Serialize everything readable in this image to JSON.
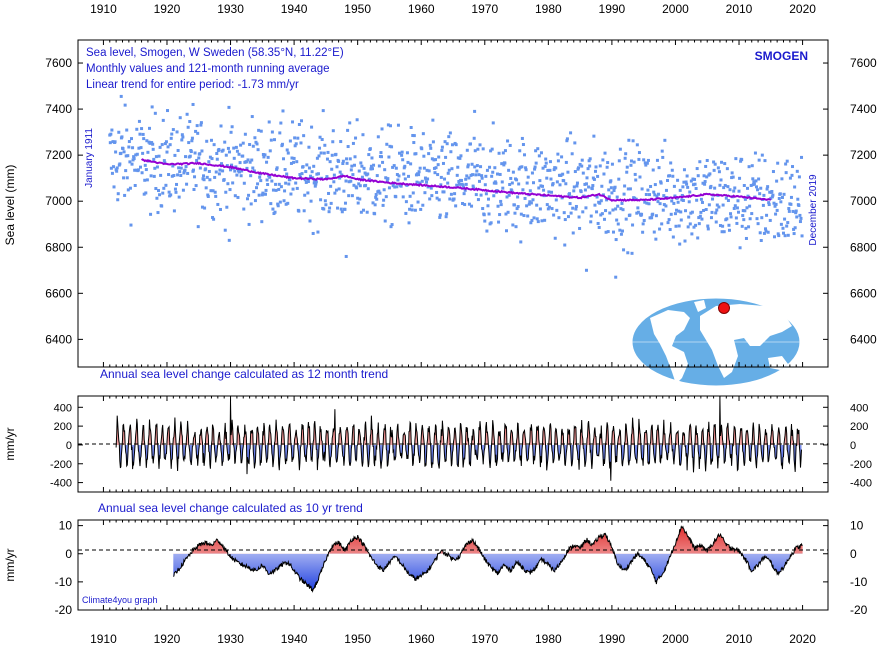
{
  "chart_data": [
    {
      "type": "scatter",
      "id": "main",
      "station": "SMOGEN",
      "title_lines": [
        "Sea level, Smogen, W Sweden (58.35°N, 11.22°E)",
        "Monthly values and 121-month running average",
        "Linear trend for entire period: -1.73 mm/yr"
      ],
      "ylabel": "Sea level (mm)",
      "start_label": "January 1911",
      "end_label": "December 2019",
      "xlim": [
        1906,
        2024
      ],
      "ylim": [
        6280,
        7700
      ],
      "xticks": [
        1910,
        1920,
        1930,
        1940,
        1950,
        1960,
        1970,
        1980,
        1990,
        2000,
        2010,
        2020
      ],
      "yticks": [
        6400,
        6600,
        6800,
        7000,
        7200,
        7400,
        7600
      ],
      "colors": {
        "monthly": "#6495ed",
        "running_average": "#9400d3",
        "title": "#1a1acd",
        "map_ocean": "#66aee6",
        "map_land": "#ffffff",
        "marker": "#ee1111"
      },
      "series": [
        {
          "name": "Monthly values",
          "style": "points",
          "trend_start": 7180,
          "trend_slope_mm_per_yr": -1.73,
          "x_start": 1911.0,
          "x_end": 2019.92,
          "notable_points": [
            [
              1912.8,
              7455
            ],
            [
              1924.1,
              7420
            ],
            [
              1968.4,
              7390
            ],
            [
              1948.2,
              6760
            ],
            [
              1990.6,
              6670
            ],
            [
              1986.0,
              6700
            ],
            [
              1929.8,
              6830
            ]
          ]
        },
        {
          "name": "121-month running average",
          "style": "line",
          "points": [
            [
              1916,
              7180
            ],
            [
              1920,
              7160
            ],
            [
              1925,
              7165
            ],
            [
              1930,
              7148
            ],
            [
              1935,
              7120
            ],
            [
              1940,
              7100
            ],
            [
              1945,
              7095
            ],
            [
              1948,
              7110
            ],
            [
              1950,
              7095
            ],
            [
              1955,
              7080
            ],
            [
              1960,
              7070
            ],
            [
              1965,
              7060
            ],
            [
              1970,
              7048
            ],
            [
              1975,
              7035
            ],
            [
              1980,
              7025
            ],
            [
              1985,
              7015
            ],
            [
              1988,
              7030
            ],
            [
              1990,
              7005
            ],
            [
              1995,
              7005
            ],
            [
              2000,
              7015
            ],
            [
              2005,
              7030
            ],
            [
              2010,
              7020
            ],
            [
              2015,
              7005
            ]
          ]
        }
      ]
    },
    {
      "type": "area",
      "id": "annual",
      "title": "Annual sea level change calculated as 12 month trend",
      "ylabel": "mm/yr",
      "xlim": [
        1906,
        2024
      ],
      "ylim": [
        -500,
        520
      ],
      "yticks": [
        -400,
        -200,
        0,
        200,
        400
      ],
      "colors": {
        "positive": "#e03030",
        "negative": "#1f3fdf",
        "line": "#000000"
      },
      "notable_peaks": [
        [
          1930.0,
          480
        ],
        [
          2007.0,
          520
        ],
        [
          1932.6,
          -310
        ],
        [
          1989.8,
          -380
        ],
        [
          1946.4,
          380
        ]
      ],
      "typical_amplitude_mm_per_yr": 220
    },
    {
      "type": "area",
      "id": "decadal",
      "title": "Annual sea level change calculated as 10 yr trend",
      "ylabel": "mm/yr",
      "note": "Climate4you graph",
      "xlim": [
        1906,
        2024
      ],
      "ylim": [
        -20,
        12
      ],
      "yticks": [
        -20,
        -10,
        0,
        10
      ],
      "colors": {
        "positive": "#e03030",
        "negative": "#1f3fdf",
        "line": "#000000"
      },
      "points": [
        [
          1921,
          -8
        ],
        [
          1922,
          -5
        ],
        [
          1923,
          -2
        ],
        [
          1924,
          1
        ],
        [
          1925,
          3
        ],
        [
          1926,
          4
        ],
        [
          1927,
          3
        ],
        [
          1928,
          5
        ],
        [
          1929,
          2
        ],
        [
          1930,
          -1
        ],
        [
          1931,
          -3
        ],
        [
          1932,
          -4
        ],
        [
          1933,
          -5
        ],
        [
          1934,
          -6
        ],
        [
          1935,
          -4
        ],
        [
          1936,
          -7
        ],
        [
          1937,
          -6
        ],
        [
          1938,
          -4
        ],
        [
          1939,
          -3
        ],
        [
          1940,
          -6
        ],
        [
          1941,
          -9
        ],
        [
          1942,
          -11
        ],
        [
          1943,
          -13
        ],
        [
          1944,
          -8
        ],
        [
          1945,
          -2
        ],
        [
          1946,
          3
        ],
        [
          1947,
          4
        ],
        [
          1948,
          1
        ],
        [
          1949,
          5
        ],
        [
          1950,
          6
        ],
        [
          1951,
          3
        ],
        [
          1952,
          -1
        ],
        [
          1953,
          -4
        ],
        [
          1954,
          -6
        ],
        [
          1955,
          -3
        ],
        [
          1956,
          -1
        ],
        [
          1957,
          -4
        ],
        [
          1958,
          -7
        ],
        [
          1959,
          -9
        ],
        [
          1960,
          -8
        ],
        [
          1961,
          -6
        ],
        [
          1962,
          -3
        ],
        [
          1963,
          1
        ],
        [
          1964,
          0
        ],
        [
          1965,
          -2
        ],
        [
          1966,
          -1
        ],
        [
          1967,
          3
        ],
        [
          1968,
          5
        ],
        [
          1969,
          2
        ],
        [
          1970,
          -2
        ],
        [
          1971,
          -5
        ],
        [
          1972,
          -7
        ],
        [
          1973,
          -4
        ],
        [
          1974,
          -6
        ],
        [
          1975,
          -3
        ],
        [
          1976,
          -5
        ],
        [
          1977,
          -7
        ],
        [
          1978,
          -5
        ],
        [
          1979,
          -2
        ],
        [
          1980,
          -4
        ],
        [
          1981,
          -6
        ],
        [
          1982,
          -3
        ],
        [
          1983,
          1
        ],
        [
          1984,
          3
        ],
        [
          1985,
          2
        ],
        [
          1986,
          5
        ],
        [
          1987,
          3
        ],
        [
          1988,
          6
        ],
        [
          1989,
          7
        ],
        [
          1990,
          2
        ],
        [
          1991,
          -4
        ],
        [
          1992,
          -6
        ],
        [
          1993,
          -3
        ],
        [
          1994,
          0
        ],
        [
          1995,
          -2
        ],
        [
          1996,
          -5
        ],
        [
          1997,
          -10
        ],
        [
          1998,
          -7
        ],
        [
          1999,
          -2
        ],
        [
          2000,
          4
        ],
        [
          2001,
          10
        ],
        [
          2002,
          6
        ],
        [
          2003,
          2
        ],
        [
          2004,
          3
        ],
        [
          2005,
          1
        ],
        [
          2006,
          4
        ],
        [
          2007,
          7
        ],
        [
          2008,
          3
        ],
        [
          2009,
          2
        ],
        [
          2010,
          1
        ],
        [
          2011,
          -2
        ],
        [
          2012,
          -6
        ],
        [
          2013,
          -4
        ],
        [
          2014,
          -1
        ],
        [
          2015,
          -3
        ],
        [
          2016,
          -7
        ],
        [
          2017,
          -5
        ],
        [
          2018,
          -1
        ],
        [
          2019,
          2
        ],
        [
          2020,
          3
        ]
      ]
    }
  ]
}
